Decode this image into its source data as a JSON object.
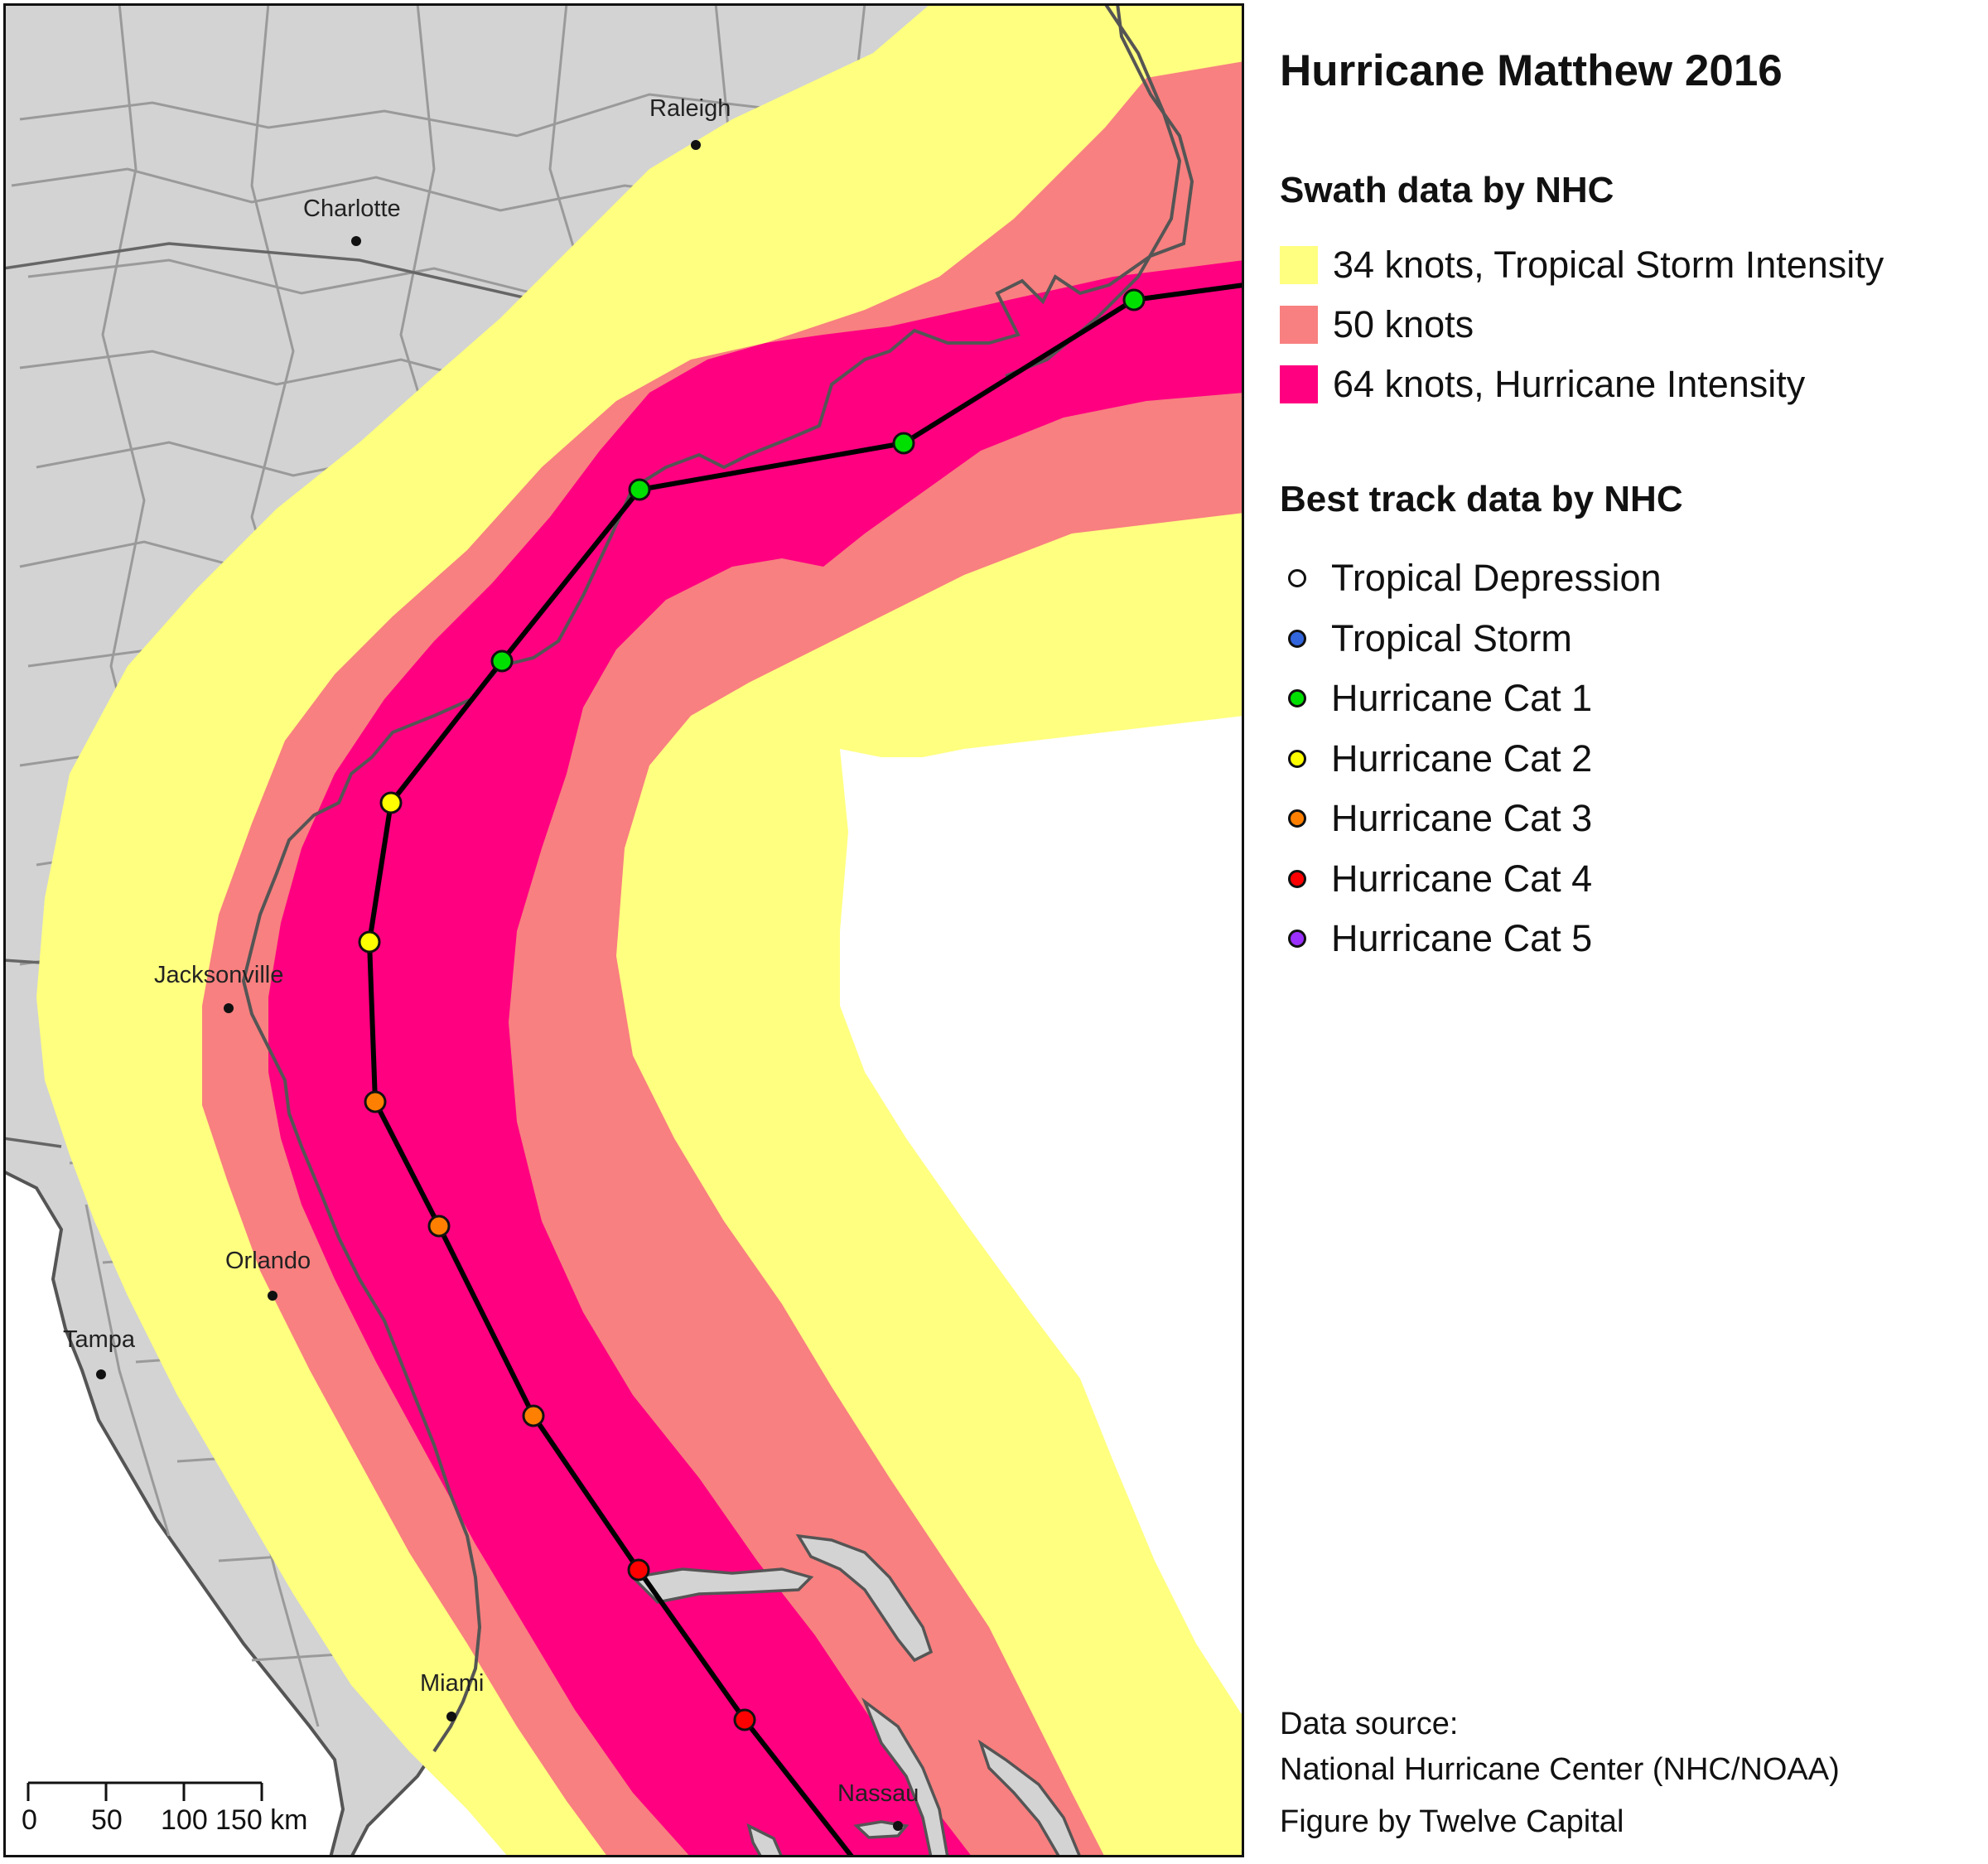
{
  "map": {
    "cities": [
      {
        "name": "Raleigh"
      },
      {
        "name": "Charlotte"
      },
      {
        "name": "Jacksonville"
      },
      {
        "name": "Orlando"
      },
      {
        "name": "Tampa"
      },
      {
        "name": "Miami"
      },
      {
        "name": "Nassau"
      }
    ],
    "scale_bar": {
      "ticks": [
        "0",
        "50",
        "100",
        "150 km"
      ]
    },
    "colors": {
      "land": "#d3d3d3",
      "water": "#ffffff",
      "swath_34": "#ffff80",
      "swath_50": "#f88080",
      "swath_64": "#ff0080",
      "track_line": "#000000",
      "coast": "#555555",
      "county": "#9a9a9a"
    },
    "track_points": [
      {
        "category": "Hurricane Cat 4"
      },
      {
        "category": "Hurricane Cat 4"
      },
      {
        "category": "Hurricane Cat 3"
      },
      {
        "category": "Hurricane Cat 3"
      },
      {
        "category": "Hurricane Cat 3"
      },
      {
        "category": "Hurricane Cat 2"
      },
      {
        "category": "Hurricane Cat 2"
      },
      {
        "category": "Hurricane Cat 1"
      },
      {
        "category": "Hurricane Cat 1"
      },
      {
        "category": "Hurricane Cat 1"
      },
      {
        "category": "Hurricane Cat 1"
      }
    ]
  },
  "legend": {
    "title": "Hurricane Matthew 2016",
    "swath_title": "Swath data by NHC",
    "swath_items": [
      {
        "label": "34 knots, Tropical Storm Intensity",
        "color": "#ffff80"
      },
      {
        "label": "50 knots",
        "color": "#f88080"
      },
      {
        "label": "64 knots, Hurricane Intensity",
        "color": "#ff0080"
      }
    ],
    "track_title": "Best track data by NHC",
    "track_items": [
      {
        "label": "Tropical Depression",
        "color": "#ffffff"
      },
      {
        "label": "Tropical Storm",
        "color": "#3366dd"
      },
      {
        "label": "Hurricane Cat 1",
        "color": "#00e000"
      },
      {
        "label": "Hurricane Cat 2",
        "color": "#ffff00"
      },
      {
        "label": "Hurricane Cat 3",
        "color": "#ff8000"
      },
      {
        "label": "Hurricane Cat 4",
        "color": "#ff0000"
      },
      {
        "label": "Hurricane Cat 5",
        "color": "#9b30ff"
      }
    ],
    "source_lines": [
      "Data source:",
      "National Hurricane Center (NHC/NOAA)",
      "Figure by Twelve Capital"
    ]
  }
}
